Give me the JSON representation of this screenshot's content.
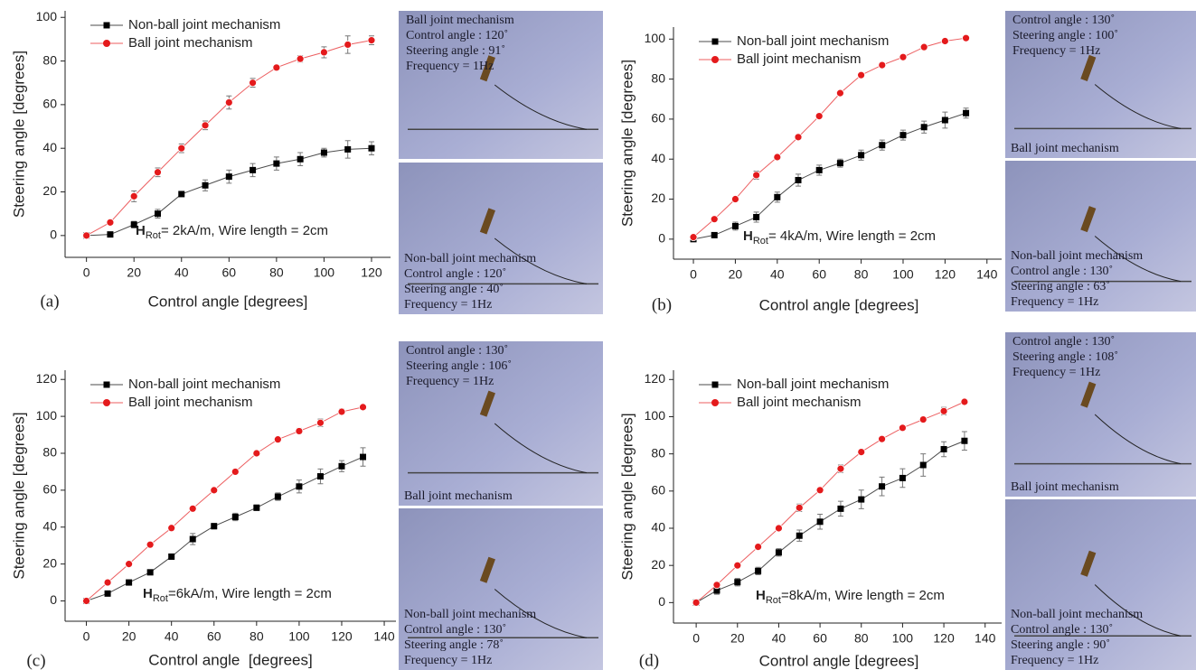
{
  "chart_data": [
    {
      "type": "line",
      "panel_label": "(a)",
      "x_label": "Control angle [degrees]",
      "y_label": "Steering angle [degrees]",
      "annotation": {
        "symbol": "H",
        "subscript": "Rot",
        "text": "= 2kA/m, Wire length = 2cm"
      },
      "x": [
        0,
        10,
        20,
        30,
        40,
        50,
        60,
        70,
        80,
        90,
        100,
        110,
        120
      ],
      "xlim": [
        -9,
        128
      ],
      "xticks": [
        0,
        20,
        40,
        60,
        80,
        100,
        120
      ],
      "ylim": [
        -10,
        103
      ],
      "yticks": [
        0,
        20,
        40,
        60,
        80,
        100
      ],
      "series": [
        {
          "name": "Non-ball joint mechanism",
          "color": "#000000",
          "marker": "square",
          "values": [
            0,
            0.5,
            5,
            10,
            19,
            23,
            27,
            30,
            33,
            35,
            38,
            39.5,
            40
          ],
          "errors": [
            0,
            0.5,
            1.5,
            2,
            1,
            2.5,
            3,
            3,
            3,
            3,
            2,
            4,
            3
          ]
        },
        {
          "name": "Ball joint mechanism",
          "color": "#e41a1c",
          "marker": "circle",
          "values": [
            0,
            6,
            18,
            29,
            40,
            50.5,
            61,
            70,
            77,
            81,
            84,
            87.5,
            89.5
          ],
          "errors": [
            0,
            1,
            2.5,
            2,
            2,
            2,
            3,
            2,
            1,
            1.5,
            2.5,
            4,
            2
          ]
        }
      ],
      "photos": [
        {
          "top_text": [
            "Ball joint mechanism",
            "Control angle : 120˚",
            "Steering angle : 91˚",
            "Frequency = 1Hz"
          ],
          "bottom_text": []
        },
        {
          "top_text": [],
          "bottom_text": [
            "Non-ball joint mechanism",
            "Control angle : 120˚",
            "Steering angle : 40˚",
            "Frequency = 1Hz"
          ]
        }
      ]
    },
    {
      "type": "line",
      "panel_label": "(b)",
      "x_label": "Control angle [degrees]",
      "y_label": "Steering angle [degrees]",
      "annotation": {
        "symbol": "H",
        "subscript": "Rot",
        "text": "= 4kA/m, Wire length = 2cm"
      },
      "x": [
        0,
        10,
        20,
        30,
        40,
        50,
        60,
        70,
        80,
        90,
        100,
        110,
        120,
        130
      ],
      "xlim": [
        -9.5,
        147
      ],
      "xticks": [
        0,
        20,
        40,
        60,
        80,
        100,
        120,
        140
      ],
      "ylim": [
        -10,
        106
      ],
      "yticks": [
        0,
        20,
        40,
        60,
        80,
        100
      ],
      "series": [
        {
          "name": "Non-ball joint mechanism",
          "color": "#000000",
          "marker": "square",
          "values": [
            0,
            2,
            6.5,
            11,
            21,
            29.5,
            34.5,
            38,
            42,
            47,
            52,
            56,
            59.5,
            63
          ],
          "errors": [
            0,
            1,
            2,
            2.5,
            2.5,
            3,
            2.5,
            2,
            2.5,
            2.5,
            2.5,
            3,
            4,
            2.5
          ]
        },
        {
          "name": "Ball joint mechanism",
          "color": "#e41a1c",
          "marker": "circle",
          "values": [
            1,
            10,
            20,
            32,
            41,
            51,
            61.5,
            73,
            82,
            87,
            91,
            96,
            99,
            100.5
          ],
          "errors": [
            1,
            1,
            1,
            2,
            1,
            1,
            1,
            1,
            1,
            1,
            1,
            1,
            1,
            1
          ]
        }
      ],
      "photos": [
        {
          "top_text": [
            "Control angle : 130˚",
            "Steering angle : 100˚",
            "Frequency = 1Hz"
          ],
          "bottom_text": [
            "Ball joint mechanism"
          ]
        },
        {
          "top_text": [],
          "bottom_text": [
            "Non-ball joint mechanism",
            "Control angle : 130˚",
            "Steering angle : 63˚",
            "Frequency = 1Hz"
          ]
        }
      ]
    },
    {
      "type": "line",
      "panel_label": "(c)",
      "x_label": "Control angle  [degrees]",
      "y_label": "Steering angle [degrees]",
      "annotation": {
        "symbol": "H",
        "subscript": "Rot",
        "text": "=6kA/m, Wire length = 2cm"
      },
      "x": [
        0,
        10,
        20,
        30,
        40,
        50,
        60,
        70,
        80,
        90,
        100,
        110,
        120,
        130
      ],
      "xlim": [
        -10,
        145.5
      ],
      "xticks": [
        0,
        20,
        40,
        60,
        80,
        100,
        120,
        140
      ],
      "ylim": [
        -11,
        125
      ],
      "yticks": [
        0,
        20,
        40,
        60,
        80,
        100,
        120
      ],
      "series": [
        {
          "name": "Non-ball joint mechanism",
          "color": "#000000",
          "marker": "square",
          "values": [
            0,
            4,
            10,
            15.5,
            24,
            33.5,
            40.5,
            45.5,
            50.5,
            56.5,
            62,
            67.5,
            73,
            78
          ],
          "errors": [
            0,
            1,
            1,
            1,
            1,
            3,
            1.5,
            2,
            1.5,
            2,
            3.5,
            4,
            3,
            5
          ]
        },
        {
          "name": "Ball joint mechanism",
          "color": "#e41a1c",
          "marker": "circle",
          "values": [
            0,
            10,
            20,
            30.5,
            39.5,
            50,
            60,
            70,
            80,
            87.5,
            92,
            96.5,
            102.5,
            105
          ],
          "errors": [
            0,
            1,
            1,
            1,
            1,
            1,
            1,
            1,
            1,
            1,
            1.5,
            2,
            1.5,
            1
          ]
        }
      ],
      "photos": [
        {
          "top_text": [
            "Control angle : 130˚",
            "Steering angle : 106˚",
            "Frequency = 1Hz"
          ],
          "bottom_text": [
            "Ball joint mechanism"
          ]
        },
        {
          "top_text": [],
          "bottom_text": [
            "Non-ball joint mechanism",
            "Control angle : 130˚",
            "Steering angle : 78˚",
            "Frequency = 1Hz"
          ]
        }
      ]
    },
    {
      "type": "line",
      "panel_label": "(d)",
      "x_label": "Control angle [degrees]",
      "y_label": "Steering angle [degrees]",
      "annotation": {
        "symbol": "H",
        "subscript": "Rot",
        "text": "=8kA/m, Wire length = 2cm"
      },
      "x": [
        0,
        10,
        20,
        30,
        40,
        50,
        60,
        70,
        80,
        90,
        100,
        110,
        120,
        130
      ],
      "xlim": [
        -11,
        148
      ],
      "xticks": [
        0,
        20,
        40,
        60,
        80,
        100,
        120,
        140
      ],
      "ylim": [
        -11,
        125
      ],
      "yticks": [
        0,
        20,
        40,
        60,
        80,
        100,
        120
      ],
      "series": [
        {
          "name": "Non-ball joint mechanism",
          "color": "#000000",
          "marker": "square",
          "values": [
            0,
            6.5,
            11,
            17,
            27,
            36,
            43.5,
            50.5,
            55.5,
            62.5,
            67,
            74,
            82.5,
            87
          ],
          "errors": [
            0,
            2,
            2,
            2,
            2,
            3,
            4,
            4,
            5,
            5,
            5,
            6,
            4,
            5
          ]
        },
        {
          "name": "Ball joint mechanism",
          "color": "#e41a1c",
          "marker": "circle",
          "values": [
            0,
            9.5,
            20,
            30,
            40,
            51,
            60.5,
            72,
            81,
            88,
            94,
            98.5,
            103,
            108
          ],
          "errors": [
            0,
            1,
            1,
            1,
            1,
            2,
            1,
            2,
            1,
            1,
            1,
            1,
            2,
            1
          ]
        }
      ],
      "photos": [
        {
          "top_text": [
            "Control angle : 130˚",
            "Steering angle : 108˚",
            "Frequency = 1Hz"
          ],
          "bottom_text": [
            "Ball joint mechanism"
          ]
        },
        {
          "top_text": [],
          "bottom_text": [
            "Non-ball joint mechanism",
            "Control angle : 130˚",
            "Steering angle : 90˚",
            "Frequency = 1Hz"
          ]
        }
      ]
    }
  ]
}
